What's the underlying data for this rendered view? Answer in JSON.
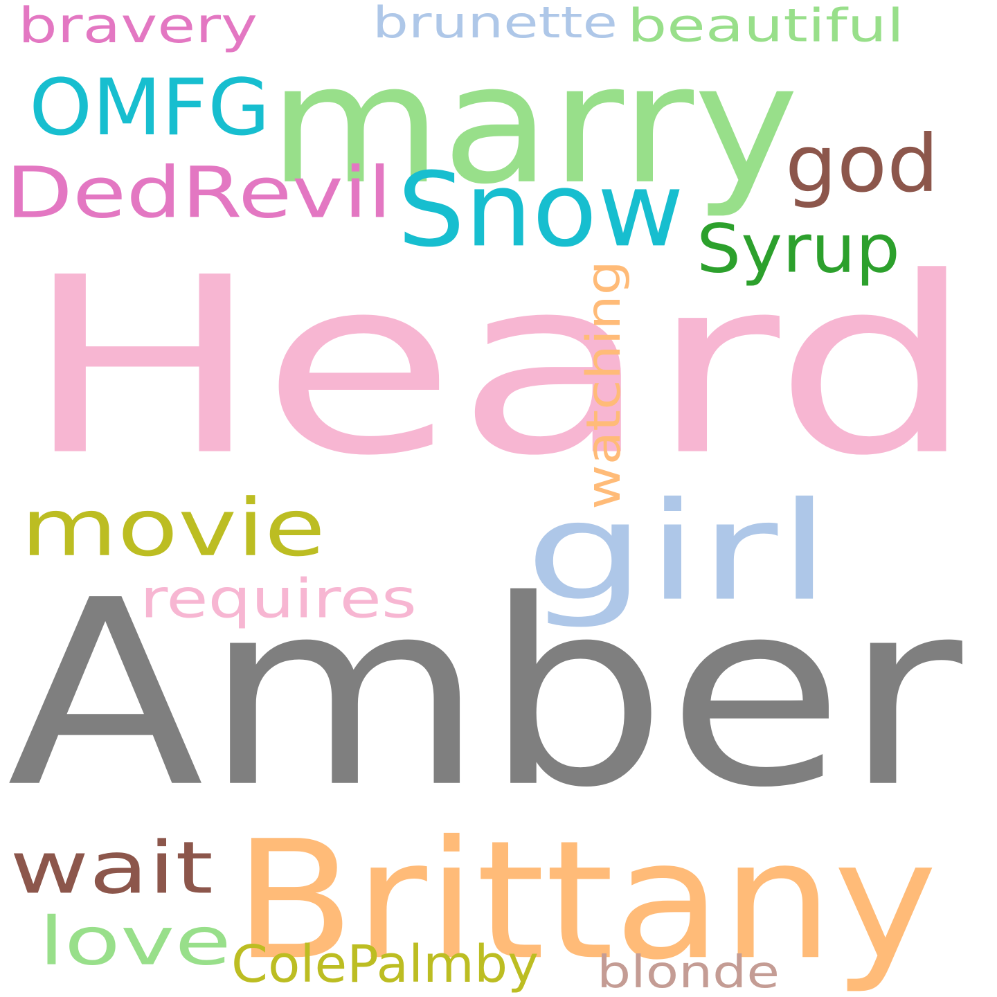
{
  "words": [
    {
      "text": "Heard",
      "color": "#f7b6d2",
      "vertical": false
    },
    {
      "text": "Amber",
      "color": "#7f7f7f",
      "vertical": false
    },
    {
      "text": "marry",
      "color": "#98df8a",
      "vertical": false
    },
    {
      "text": "Brittany",
      "color": "#ffbb78",
      "vertical": false
    },
    {
      "text": "Snow",
      "color": "#17becf",
      "vertical": false
    },
    {
      "text": "girl",
      "color": "#aec7e8",
      "vertical": false
    },
    {
      "text": "OMFG",
      "color": "#17becf",
      "vertical": false
    },
    {
      "text": "DedRevil",
      "color": "#e377c2",
      "vertical": false
    },
    {
      "text": "movie",
      "color": "#bcbd22",
      "vertical": false
    },
    {
      "text": "wait",
      "color": "#8c564b",
      "vertical": false
    },
    {
      "text": "god",
      "color": "#8c564b",
      "vertical": false
    },
    {
      "text": "love",
      "color": "#98df8a",
      "vertical": false
    },
    {
      "text": "Syrup",
      "color": "#2ca02c",
      "vertical": false
    },
    {
      "text": "watching",
      "color": "#ffbb78",
      "vertical": true
    },
    {
      "text": "requires",
      "color": "#f7b6d2",
      "vertical": false
    },
    {
      "text": "bravery",
      "color": "#e377c2",
      "vertical": false
    },
    {
      "text": "brunette",
      "color": "#aec7e8",
      "vertical": false
    },
    {
      "text": "beautiful",
      "color": "#98df8a",
      "vertical": false
    },
    {
      "text": "ColePalmby",
      "color": "#bcbd22",
      "vertical": false
    },
    {
      "text": "blonde",
      "color": "#c49c94",
      "vertical": false
    }
  ]
}
